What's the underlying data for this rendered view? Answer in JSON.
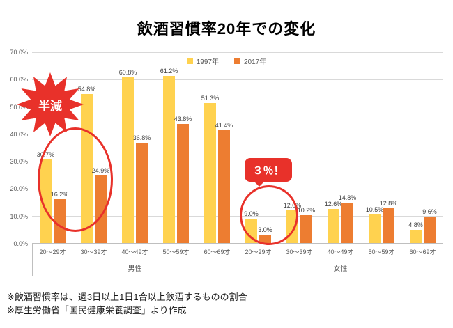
{
  "page": {
    "title": "飲酒習慣率20年での変化",
    "notes": [
      "※飲酒習慣率は、週3日以上1日1合以上飲酒するものの割合",
      "※厚生労働省「国民健康栄養調査」より作成"
    ]
  },
  "annotations": {
    "burst_label": "半減",
    "callout_label": "３％！",
    "accent_color": "#e8312a"
  },
  "chart_data": {
    "type": "bar",
    "title": "飲酒習慣率20年での変化",
    "categories": [
      "20〜29才",
      "30〜39才",
      "40〜49才",
      "50〜59才",
      "60〜69才",
      "20〜29才",
      "30〜39才",
      "40〜49才",
      "50〜59才",
      "60〜69才"
    ],
    "group_labels": [
      {
        "label": "男性",
        "span": 5
      },
      {
        "label": "女性",
        "span": 5
      }
    ],
    "series": [
      {
        "name": "1997年",
        "color": "#ffd24f",
        "values": [
          30.7,
          54.8,
          60.8,
          61.2,
          51.3,
          9.0,
          12.0,
          12.6,
          10.5,
          4.8
        ]
      },
      {
        "name": "2017年",
        "color": "#ed7d31",
        "values": [
          16.2,
          24.9,
          36.8,
          43.8,
          41.4,
          3.0,
          10.2,
          14.8,
          12.8,
          9.6
        ]
      }
    ],
    "ylim": [
      0,
      70
    ],
    "y_tick_labels": [
      "0.0%",
      "10.0%",
      "20.0%",
      "30.0%",
      "40.0%",
      "50.0%",
      "60.0%",
      "70.0%"
    ],
    "grid": true,
    "legend_position": "top",
    "value_labels": true,
    "xlabel": "",
    "ylabel": ""
  }
}
